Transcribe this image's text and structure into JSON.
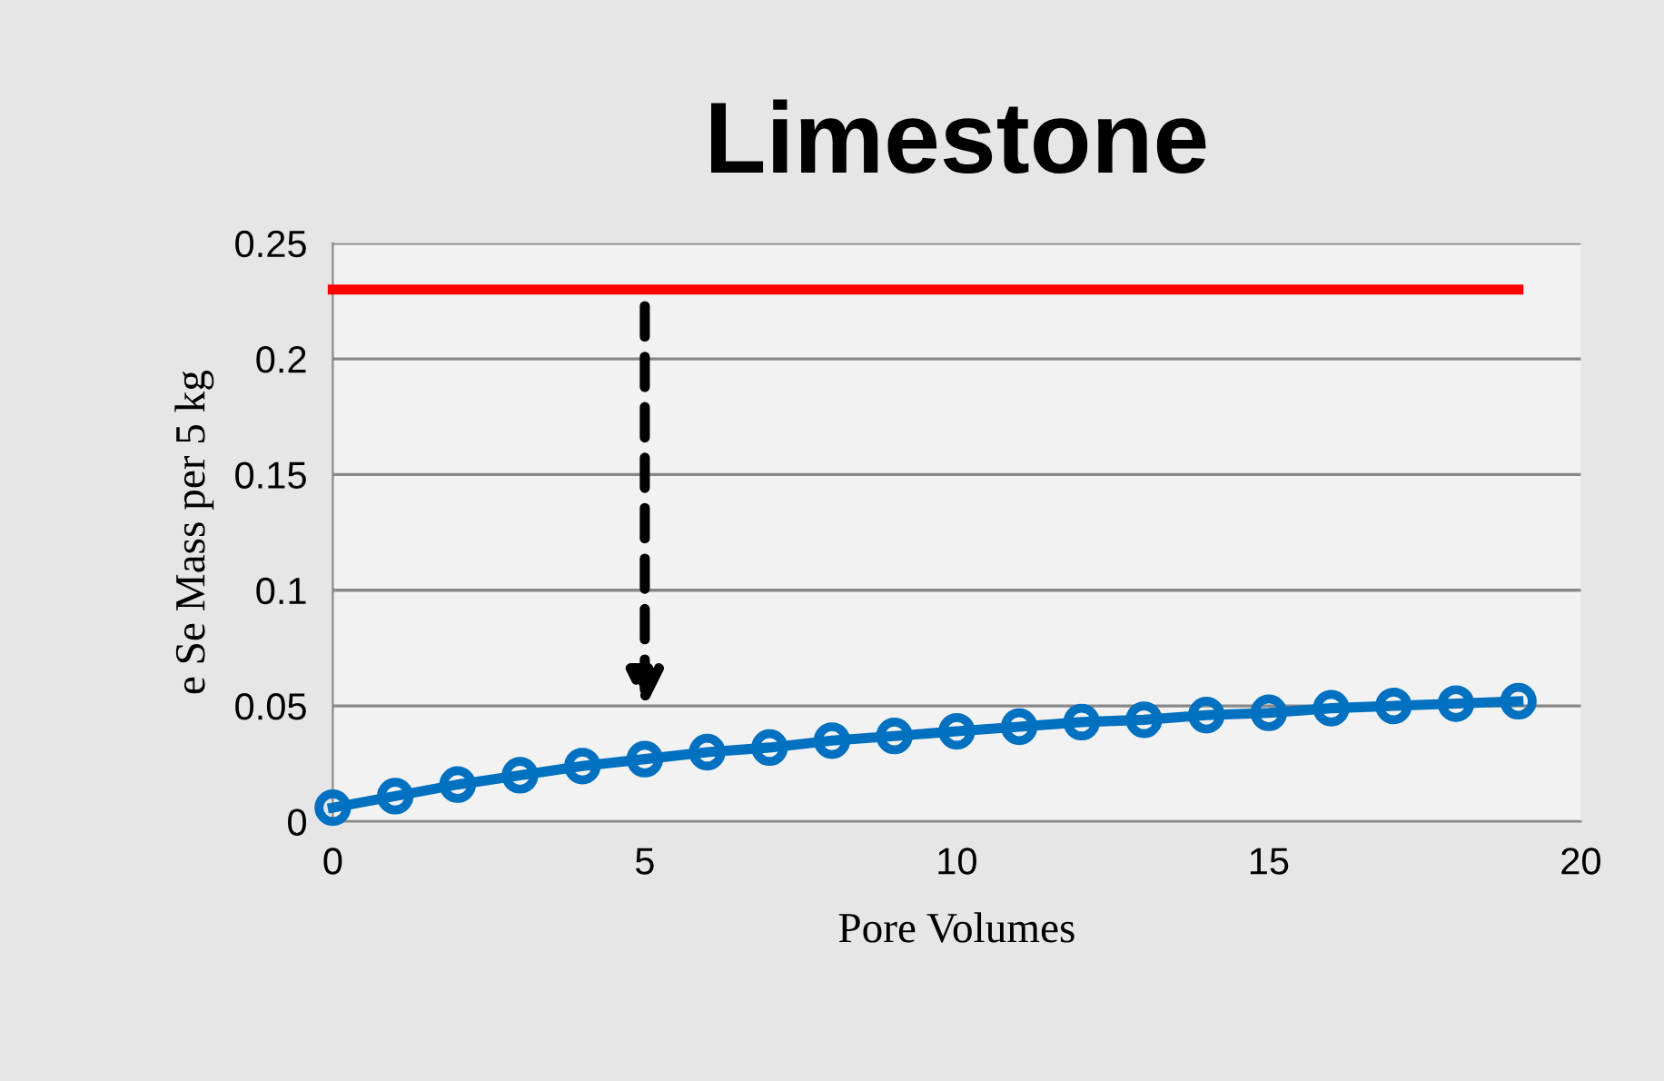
{
  "chart_data": {
    "type": "line",
    "title": "Limestone",
    "xlabel": "Pore Volumes",
    "ylabel": "e Se Mass per 5 kg",
    "xlim": [
      0,
      20
    ],
    "xticks": [
      0,
      5,
      10,
      15,
      20
    ],
    "ylim": [
      0,
      0.25
    ],
    "yticks": [
      0,
      0.05,
      0.1,
      0.15,
      0.2,
      0.25
    ],
    "grid": "y",
    "legend": false,
    "series": [
      {
        "color": "#0070c0",
        "marker": "circle",
        "x": [
          0,
          1,
          2,
          3,
          4,
          5,
          6,
          7,
          8,
          9,
          10,
          11,
          12,
          13,
          14,
          15,
          16,
          17,
          18,
          19
        ],
        "values": [
          0.006,
          0.011,
          0.016,
          0.02,
          0.024,
          0.027,
          0.03,
          0.032,
          0.035,
          0.037,
          0.039,
          0.041,
          0.043,
          0.044,
          0.046,
          0.047,
          0.049,
          0.05,
          0.051,
          0.052
        ]
      },
      {
        "color": "#ff0000",
        "marker": "none",
        "x": [
          0,
          19
        ],
        "values": [
          0.23,
          0.23
        ]
      }
    ]
  }
}
